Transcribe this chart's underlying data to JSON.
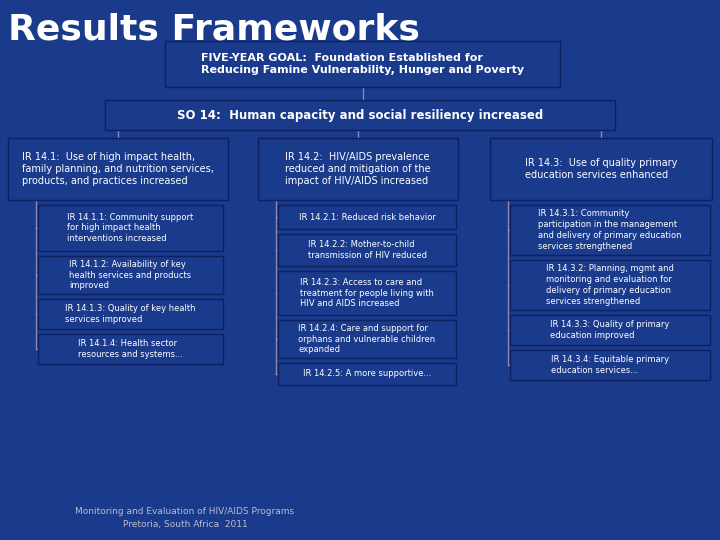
{
  "title": "Results Frameworks",
  "bg_color": "#1a3a8c",
  "box_border_color": "#0d2060",
  "text_color": "#ffffff",
  "title_fontsize": 26,
  "goal_text": "FIVE-YEAR GOAL:  Foundation Established for\nReducing Famine Vulnerability, Hunger and Poverty",
  "so_text": "SO 14:  Human capacity and social resiliency increased",
  "ir1_text": "IR 14.1:  Use of high impact health,\nfamily planning, and nutrition services,\nproducts, and practices increased",
  "ir2_text": "IR 14.2:  HIV/AIDS prevalence\nreduced and mitigation of the\nimpact of HIV/AIDS increased",
  "ir3_text": "IR 14.3:  Use of quality primary\neducation services enhanced",
  "ir1_subs": [
    "IR 14.1.1: Community support\nfor high impact health\ninterventions increased",
    "IR 14.1.2: Availability of key\nhealth services and products\nimproved",
    "IR 14.1.3: Quality of key health\nservices improved",
    "IR 14.1.4: Health sector\nresources and systems..."
  ],
  "ir2_subs": [
    "IR 14.2.1: Reduced risk behavior",
    "IR 14.2.2: Mother-to-child\ntransmission of HIV reduced",
    "IR 14.2.3: Access to care and\ntreatment for people living with\nHIV and AIDS increased",
    "IR 14.2.4: Care and support for\norphans and vulnerable children\nexpanded",
    "IR 14.2.5: A more supportive..."
  ],
  "ir3_subs": [
    "IR 14.3.1: Community\nparticipation in the management\nand delivery of primary education\nservices strengthened",
    "IR 14.3.2: Planning, mgmt and\nmonitoring and evaluation for\ndelivery of primary education\nservices strengthened",
    "IR 14.3.3: Quality of primary\neducation improved",
    "IR 14.3.4: Equitable primary\neducation services..."
  ],
  "footer_text": "Monitoring and Evaluation of HIV/AIDS Programs\nPretoria, South Africa  2011",
  "footer_color": "#bbbbcc",
  "line_color": "#8888bb"
}
